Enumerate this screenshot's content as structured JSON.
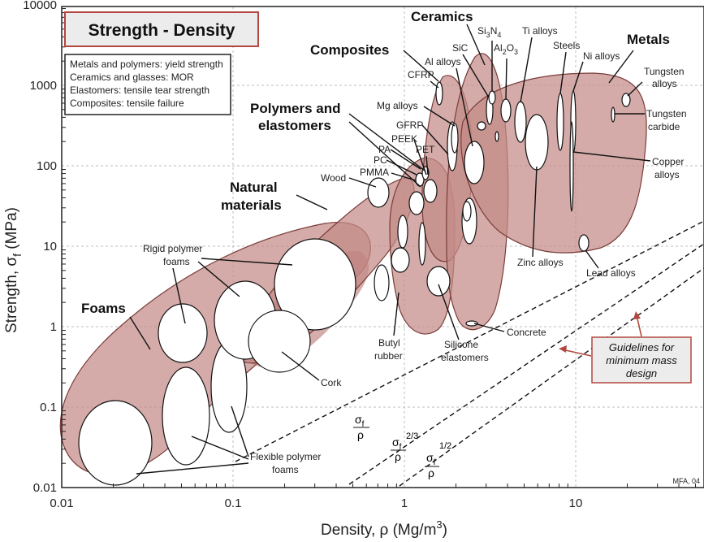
{
  "chart_data": {
    "type": "scatter",
    "title": "Strength - Density",
    "subtitle_lines": [
      "Metals and polymers: yield strength",
      "Ceramics and glasses: MOR",
      "Elastomers: tensile tear strength",
      "Composites: tensile failure"
    ],
    "xlabel": "Density, ρ  (Mg/m³)",
    "ylabel": "Strength, σf  (MPa)",
    "xscale": "log",
    "yscale": "log",
    "xlim": [
      0.01,
      60
    ],
    "ylim": [
      0.01,
      10000
    ],
    "x_ticks": [
      "0.01",
      "0.1",
      "1",
      "10"
    ],
    "y_ticks": [
      "0.01",
      "0.1",
      "1",
      "10",
      "100",
      "1000",
      "10000"
    ],
    "grid": true,
    "families": [
      {
        "name": "Foams",
        "x_range": [
          0.01,
          0.6
        ],
        "y_range": [
          0.012,
          40
        ]
      },
      {
        "name": "Natural materials",
        "x_range": [
          0.15,
          1.6
        ],
        "y_range": [
          0.8,
          300
        ]
      },
      {
        "name": "Polymers and elastomers",
        "x_range": [
          0.9,
          2.8
        ],
        "y_range": [
          0.6,
          250
        ]
      },
      {
        "name": "Composites",
        "x_range": [
          1.4,
          2.6
        ],
        "y_range": [
          2,
          1200
        ]
      },
      {
        "name": "Ceramics",
        "x_range": [
          2.2,
          4.2
        ],
        "y_range": [
          0.7,
          6000
        ]
      },
      {
        "name": "Metals",
        "x_range": [
          2.8,
          25
        ],
        "y_range": [
          8,
          3000
        ]
      }
    ],
    "materials": [
      {
        "name": "Rigid polymer foams",
        "x": 0.15,
        "y": 1.5
      },
      {
        "name": "Flexible polymer foams",
        "x": 0.05,
        "y": 0.05
      },
      {
        "name": "Cork",
        "x": 0.2,
        "y": 0.8
      },
      {
        "name": "Wood",
        "x": 0.7,
        "y": 50
      },
      {
        "name": "Butyl rubber",
        "x": 0.95,
        "y": 3
      },
      {
        "name": "Silicone elastomers",
        "x": 1.6,
        "y": 5
      },
      {
        "name": "PMMA",
        "x": 1.18,
        "y": 60
      },
      {
        "name": "PC",
        "x": 1.2,
        "y": 65
      },
      {
        "name": "PA",
        "x": 1.13,
        "y": 70
      },
      {
        "name": "PET",
        "x": 1.37,
        "y": 60
      },
      {
        "name": "PEEK",
        "x": 1.3,
        "y": 90
      },
      {
        "name": "GFRP",
        "x": 1.9,
        "y": 150
      },
      {
        "name": "Mg alloys",
        "x": 1.8,
        "y": 200
      },
      {
        "name": "CFRP",
        "x": 1.5,
        "y": 800
      },
      {
        "name": "Al alloys",
        "x": 2.7,
        "y": 300
      },
      {
        "name": "SiC",
        "x": 3.1,
        "y": 500
      },
      {
        "name": "Si3N4",
        "x": 3.2,
        "y": 700
      },
      {
        "name": "Al2O3",
        "x": 3.9,
        "y": 600
      },
      {
        "name": "Concrete",
        "x": 2.4,
        "y": 0.7
      },
      {
        "name": "Ti alloys",
        "x": 4.6,
        "y": 700
      },
      {
        "name": "Steels",
        "x": 7.8,
        "y": 800
      },
      {
        "name": "Ni alloys",
        "x": 8.5,
        "y": 800
      },
      {
        "name": "Copper alloys",
        "x": 8.9,
        "y": 300
      },
      {
        "name": "Zinc alloys",
        "x": 6.5,
        "y": 200
      },
      {
        "name": "Lead alloys",
        "x": 11.5,
        "y": 12
      },
      {
        "name": "Tungsten alloys",
        "x": 17,
        "y": 700
      },
      {
        "name": "Tungsten carbide",
        "x": 15.5,
        "y": 400
      }
    ],
    "guidelines": [
      "σf/ρ",
      "σf^2/3/ρ",
      "σf^1/2/ρ"
    ],
    "guideline_note": "Guidelines for minimum mass design",
    "credit": "MFA, 04"
  },
  "labels": {
    "title": "Strength - Density",
    "x_axis_title": "Density, ρ  (Mg/m",
    "x_axis_sup": "3",
    "x_axis_close": ")",
    "y_axis_title": "Strength, σ",
    "y_axis_sub": "f",
    "y_axis_unit": "  (MPa)",
    "note_1": "Metals and polymers: yield strength",
    "note_2": "Ceramics and glasses: MOR",
    "note_3": "Elastomers: tensile tear strength",
    "note_4": "Composites: tensile failure",
    "foams": "Foams",
    "natural_1": "Natural",
    "natural_2": "materials",
    "polymers_1": "Polymers and",
    "polymers_2": "elastomers",
    "composites": "Composites",
    "ceramics": "Ceramics",
    "metals": "Metals",
    "rigid_1": "Rigid polymer",
    "rigid_2": "foams",
    "flexible_1": "Flexible polymer",
    "flexible_2": "foams",
    "cork": "Cork",
    "wood": "Wood",
    "butyl_1": "Butyl",
    "butyl_2": "rubber",
    "silicone_1": "Silicone",
    "silicone_2": "elastomers",
    "concrete": "Concrete",
    "pmma": "PMMA",
    "pc": "PC",
    "pa": "PA",
    "pet": "PET",
    "peek": "PEEK",
    "gfrp": "GFRP",
    "mg": "Mg alloys",
    "cfrp": "CFRP",
    "al": "Al alloys",
    "sic": "SiC",
    "si3n4_a": "Si",
    "si3n4_b": "3",
    "si3n4_c": "N",
    "si3n4_d": "4",
    "al2o3_a": "Al",
    "al2o3_b": "2",
    "al2o3_c": "O",
    "al2o3_d": "3",
    "ti": "Ti alloys",
    "steels": "Steels",
    "ni": "Ni alloys",
    "tungsten_1": "Tungsten",
    "tungsten_2": "alloys",
    "wc_1": "Tungsten",
    "wc_2": "carbide",
    "copper_1": "Copper",
    "copper_2": "alloys",
    "zinc": "Zinc alloys",
    "lead": "Lead alloys",
    "guide_1": "Guidelines for",
    "guide_2": "minimum mass",
    "guide_3": "design",
    "sigma_f": "σ",
    "sub_f": "f",
    "rho": "ρ",
    "exp_23": "2/3",
    "exp_12": "1/2",
    "credit": "MFA,  04"
  },
  "colors": {
    "family_fill": "#c48a86",
    "family_stroke": "#7a3c38",
    "title_border": "#b2473f",
    "guide_box_fill": "#ececec",
    "guide_arrow": "#b2473f"
  }
}
